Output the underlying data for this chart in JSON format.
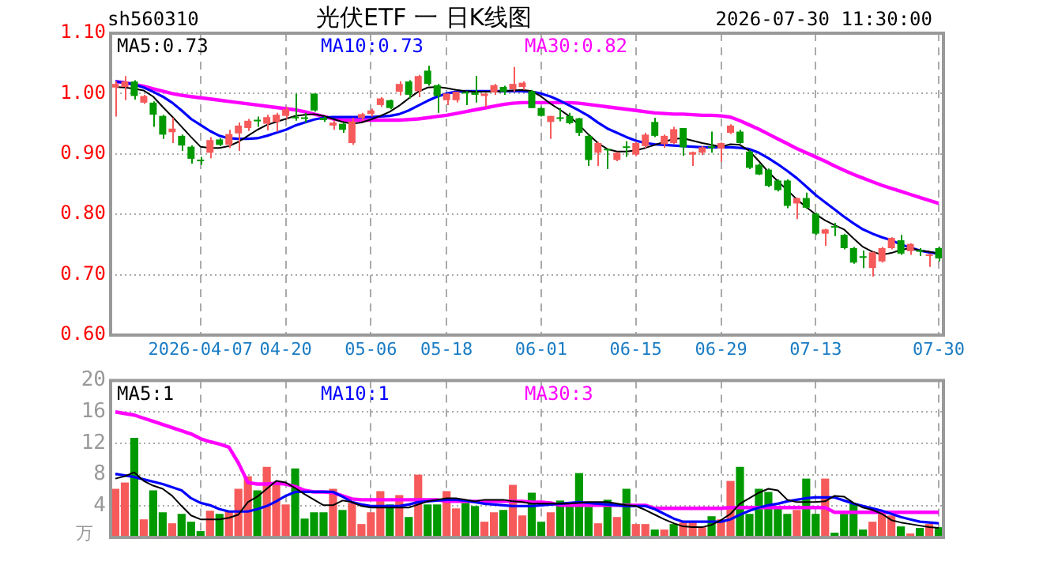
{
  "chart_data": [
    {
      "type": "candlestick",
      "title": "光伏ETF 一 日K线图",
      "annotations": [
        "sh560310",
        "2026-07-30 11:30:00"
      ],
      "categories": [
        null,
        null,
        null,
        null,
        null,
        null,
        null,
        null,
        null,
        "2026-04-07",
        null,
        null,
        null,
        null,
        null,
        null,
        null,
        null,
        "04-20",
        null,
        null,
        null,
        null,
        null,
        null,
        null,
        null,
        "05-06",
        null,
        null,
        null,
        null,
        null,
        null,
        null,
        "05-18",
        null,
        null,
        null,
        null,
        null,
        null,
        null,
        null,
        null,
        "06-01",
        null,
        null,
        null,
        null,
        null,
        null,
        null,
        null,
        null,
        "06-15",
        null,
        null,
        null,
        null,
        null,
        null,
        null,
        null,
        "06-29",
        null,
        null,
        null,
        null,
        null,
        null,
        null,
        null,
        null,
        "07-13",
        null,
        null,
        null,
        null,
        null,
        null,
        null,
        null,
        null,
        null,
        null,
        null,
        "07-30"
      ],
      "ohlc": [
        [
          1.01,
          1.02,
          0.962,
          1.016
        ],
        [
          1.011,
          1.029,
          0.989,
          1.02
        ],
        [
          1.02,
          1.022,
          0.99,
          0.996
        ],
        [
          0.985,
          0.998,
          0.983,
          0.996
        ],
        [
          0.985,
          0.987,
          0.945,
          0.965
        ],
        [
          0.963,
          0.965,
          0.925,
          0.932
        ],
        [
          0.936,
          0.96,
          0.918,
          0.942
        ],
        [
          0.93,
          0.932,
          0.905,
          0.914
        ],
        [
          0.912,
          0.914,
          0.884,
          0.892
        ],
        [
          0.889,
          0.895,
          0.882,
          0.888
        ],
        [
          0.902,
          0.928,
          0.893,
          0.923
        ],
        [
          0.924,
          0.926,
          0.913,
          0.915
        ],
        [
          0.915,
          0.94,
          0.91,
          0.933
        ],
        [
          0.934,
          0.952,
          0.905,
          0.947
        ],
        [
          0.943,
          0.958,
          0.938,
          0.955
        ],
        [
          0.955,
          0.962,
          0.945,
          0.954
        ],
        [
          0.95,
          0.965,
          0.939,
          0.961
        ],
        [
          0.953,
          0.968,
          0.937,
          0.965
        ],
        [
          0.963,
          0.978,
          0.958,
          0.974
        ],
        [
          0.96,
          1.0,
          0.955,
          0.959
        ],
        [
          0.96,
          0.968,
          0.952,
          0.958
        ],
        [
          1.0,
          1.0,
          0.97,
          0.972
        ],
        [
          0.96,
          0.962,
          0.953,
          0.956
        ],
        [
          0.947,
          0.955,
          0.94,
          0.952
        ],
        [
          0.95,
          0.952,
          0.935,
          0.94
        ],
        [
          0.918,
          0.96,
          0.915,
          0.954
        ],
        [
          0.96,
          0.968,
          0.955,
          0.966
        ],
        [
          0.966,
          0.975,
          0.962,
          0.972
        ],
        [
          0.981,
          0.994,
          0.978,
          0.992
        ],
        [
          0.989,
          0.99,
          0.974,
          0.976
        ],
        [
          1.003,
          1.02,
          0.997,
          1.016
        ],
        [
          1.02,
          1.022,
          0.992,
          0.998
        ],
        [
          1.004,
          1.031,
          0.994,
          1.029
        ],
        [
          1.038,
          1.046,
          1.013,
          1.016
        ],
        [
          1.014,
          1.016,
          0.968,
          0.996
        ],
        [
          0.989,
          1.0,
          0.981,
          1.0
        ],
        [
          0.989,
          1.003,
          0.985,
          1.003
        ],
        [
          1.002,
          1.004,
          0.981,
          1.0
        ],
        [
          1.002,
          1.029,
          0.985,
          0.998
        ],
        [
          0.996,
          1.0,
          0.978,
          1.0
        ],
        [
          1.002,
          1.016,
          0.998,
          1.014
        ],
        [
          1.011,
          1.013,
          0.998,
          1.003
        ],
        [
          1.007,
          1.044,
          1.003,
          1.016
        ],
        [
          1.011,
          1.02,
          1.006,
          1.018
        ],
        [
          1.004,
          1.006,
          0.976,
          0.976
        ],
        [
          0.976,
          0.978,
          0.962,
          0.963
        ],
        [
          0.953,
          0.963,
          0.925,
          0.963
        ],
        [
          0.96,
          0.976,
          0.954,
          0.958
        ],
        [
          0.963,
          0.968,
          0.949,
          0.951
        ],
        [
          0.959,
          0.96,
          0.93,
          0.935
        ],
        [
          0.93,
          0.932,
          0.88,
          0.89
        ],
        [
          0.902,
          0.92,
          0.88,
          0.918
        ],
        [
          0.907,
          0.909,
          0.875,
          0.906
        ],
        [
          0.89,
          0.903,
          0.888,
          0.902
        ],
        [
          0.912,
          0.921,
          0.895,
          0.91
        ],
        [
          0.899,
          0.92,
          0.896,
          0.918
        ],
        [
          0.913,
          0.935,
          0.91,
          0.932
        ],
        [
          0.953,
          0.96,
          0.928,
          0.93
        ],
        [
          0.916,
          0.932,
          0.91,
          0.93
        ],
        [
          0.918,
          0.945,
          0.916,
          0.941
        ],
        [
          0.943,
          0.943,
          0.897,
          0.911
        ],
        [
          0.899,
          0.904,
          0.88,
          0.903
        ],
        [
          0.902,
          0.913,
          0.898,
          0.911
        ],
        [
          0.912,
          0.937,
          0.902,
          0.91
        ],
        [
          0.909,
          0.919,
          0.887,
          0.918
        ],
        [
          0.935,
          0.949,
          0.933,
          0.947
        ],
        [
          0.937,
          0.94,
          0.917,
          0.918
        ],
        [
          0.904,
          0.906,
          0.875,
          0.877
        ],
        [
          0.882,
          0.884,
          0.865,
          0.866
        ],
        [
          0.874,
          0.876,
          0.845,
          0.847
        ],
        [
          0.856,
          0.858,
          0.838,
          0.84
        ],
        [
          0.856,
          0.858,
          0.81,
          0.814
        ],
        [
          0.818,
          0.827,
          0.792,
          0.827
        ],
        [
          0.827,
          0.836,
          0.809,
          0.811
        ],
        [
          0.801,
          0.803,
          0.766,
          0.768
        ],
        [
          0.768,
          0.776,
          0.748,
          0.775
        ],
        [
          0.78,
          0.786,
          0.764,
          0.778
        ],
        [
          0.766,
          0.768,
          0.742,
          0.744
        ],
        [
          0.744,
          0.746,
          0.718,
          0.72
        ],
        [
          0.73,
          0.74,
          0.711,
          0.728
        ],
        [
          0.711,
          0.738,
          0.697,
          0.737
        ],
        [
          0.722,
          0.746,
          0.72,
          0.744
        ],
        [
          0.744,
          0.762,
          0.742,
          0.761
        ],
        [
          0.757,
          0.766,
          0.733,
          0.735
        ],
        [
          0.739,
          0.752,
          0.733,
          0.751
        ],
        [
          0.74,
          0.744,
          0.731,
          0.738
        ],
        [
          0.731,
          0.735,
          0.713,
          0.733
        ],
        [
          0.744,
          0.746,
          0.722,
          0.727
        ]
      ],
      "colors": [
        "#f65a5a",
        "#f65a5a",
        "#009900",
        "#f65a5a",
        "#009900",
        "#009900",
        "#f65a5a",
        "#009900",
        "#009900",
        "#009900",
        "#f65a5a",
        "#009900",
        "#f65a5a",
        "#f65a5a",
        "#f65a5a",
        "#009900",
        "#f65a5a",
        "#f65a5a",
        "#f65a5a",
        "#009900",
        "#009900",
        "#009900",
        "#009900",
        "#f65a5a",
        "#009900",
        "#f65a5a",
        "#f65a5a",
        "#f65a5a",
        "#f65a5a",
        "#009900",
        "#f65a5a",
        "#009900",
        "#f65a5a",
        "#009900",
        "#009900",
        "#f65a5a",
        "#f65a5a",
        "#009900",
        "#009900",
        "#f65a5a",
        "#f65a5a",
        "#009900",
        "#f65a5a",
        "#f65a5a",
        "#009900",
        "#009900",
        "#f65a5a",
        "#009900",
        "#009900",
        "#009900",
        "#009900",
        "#f65a5a",
        "#009900",
        "#f65a5a",
        "#009900",
        "#f65a5a",
        "#f65a5a",
        "#009900",
        "#f65a5a",
        "#f65a5a",
        "#009900",
        "#f65a5a",
        "#f65a5a",
        "#009900",
        "#f65a5a",
        "#f65a5a",
        "#009900",
        "#009900",
        "#009900",
        "#009900",
        "#009900",
        "#009900",
        "#f65a5a",
        "#009900",
        "#009900",
        "#f65a5a",
        "#009900",
        "#009900",
        "#009900",
        "#009900",
        "#f65a5a",
        "#f65a5a",
        "#f65a5a",
        "#009900",
        "#f65a5a",
        "#009900",
        "#f65a5a",
        "#009900"
      ],
      "series": [
        {
          "type": "line",
          "name": "MA5:0.73",
          "color": "#000000",
          "values": [
            1.011,
            1.01,
            1.008,
            1.005,
            0.995,
            0.978,
            0.962,
            0.945,
            0.928,
            0.912,
            0.91,
            0.91,
            0.913,
            0.92,
            0.93,
            0.94,
            0.948,
            0.953,
            0.958,
            0.963,
            0.965,
            0.966,
            0.963,
            0.958,
            0.953,
            0.95,
            0.952,
            0.957,
            0.963,
            0.97,
            0.98,
            0.992,
            1.003,
            1.01,
            1.011,
            1.009,
            1.006,
            1.004,
            1.003,
            1.003,
            1.003,
            1.004,
            1.005,
            1.006,
            1.004,
            0.995,
            0.983,
            0.973,
            0.962,
            0.948,
            0.932,
            0.918,
            0.908,
            0.904,
            0.904,
            0.906,
            0.91,
            0.915,
            0.92,
            0.925,
            0.926,
            0.922,
            0.918,
            0.915,
            0.912,
            0.916,
            0.915,
            0.905,
            0.888,
            0.87,
            0.855,
            0.84,
            0.825,
            0.812,
            0.8,
            0.79,
            0.782,
            0.775,
            0.76,
            0.746,
            0.738,
            0.733,
            0.736,
            0.741,
            0.744,
            0.74,
            0.738,
            0.735
          ]
        },
        {
          "type": "line",
          "name": "MA10:0.73",
          "color": "#0000ff",
          "values": [
            1.02,
            1.018,
            1.015,
            1.01,
            1.003,
            0.995,
            0.985,
            0.972,
            0.958,
            0.948,
            0.938,
            0.93,
            0.926,
            0.925,
            0.925,
            0.926,
            0.93,
            0.935,
            0.94,
            0.947,
            0.952,
            0.957,
            0.96,
            0.961,
            0.961,
            0.961,
            0.961,
            0.961,
            0.962,
            0.963,
            0.966,
            0.972,
            0.98,
            0.988,
            0.995,
            1.0,
            1.003,
            1.004,
            1.004,
            1.004,
            1.004,
            1.004,
            1.004,
            1.004,
            1.003,
            1.0,
            0.995,
            0.988,
            0.98,
            0.972,
            0.963,
            0.952,
            0.942,
            0.935,
            0.928,
            0.922,
            0.918,
            0.916,
            0.915,
            0.914,
            0.913,
            0.912,
            0.911,
            0.911,
            0.911,
            0.911,
            0.91,
            0.908,
            0.902,
            0.893,
            0.883,
            0.872,
            0.86,
            0.846,
            0.832,
            0.82,
            0.808,
            0.796,
            0.785,
            0.775,
            0.768,
            0.762,
            0.757,
            0.75,
            0.745,
            0.74,
            0.737,
            0.735
          ]
        },
        {
          "type": "line",
          "name": "MA30:0.82",
          "color": "#ff00ff",
          "values": [
            1.02,
            1.018,
            1.015,
            1.012,
            1.008,
            1.004,
            1.0,
            0.997,
            0.995,
            0.993,
            0.991,
            0.989,
            0.987,
            0.985,
            0.983,
            0.981,
            0.979,
            0.977,
            0.975,
            0.973,
            0.97,
            0.966,
            0.962,
            0.958,
            0.956,
            0.956,
            0.956,
            0.956,
            0.956,
            0.956,
            0.956,
            0.957,
            0.958,
            0.96,
            0.962,
            0.964,
            0.967,
            0.97,
            0.973,
            0.976,
            0.979,
            0.982,
            0.984,
            0.985,
            0.985,
            0.985,
            0.985,
            0.985,
            0.985,
            0.984,
            0.982,
            0.98,
            0.978,
            0.976,
            0.974,
            0.972,
            0.97,
            0.968,
            0.967,
            0.966,
            0.966,
            0.965,
            0.964,
            0.964,
            0.963,
            0.961,
            0.955,
            0.948,
            0.941,
            0.933,
            0.925,
            0.917,
            0.909,
            0.902,
            0.895,
            0.888,
            0.88,
            0.873,
            0.866,
            0.86,
            0.854,
            0.848,
            0.843,
            0.838,
            0.833,
            0.828,
            0.823,
            0.818
          ]
        }
      ],
      "ylim": [
        0.6,
        1.1
      ],
      "yticks": [
        {
          "value": 0.6,
          "label": "0.60"
        },
        {
          "value": 0.7,
          "label": "0.70"
        },
        {
          "value": 0.8,
          "label": "0.80"
        },
        {
          "value": 0.9,
          "label": "0.90"
        },
        {
          "value": 1.0,
          "label": "1.00"
        },
        {
          "value": 1.1,
          "label": "1.10"
        }
      ],
      "grid": true,
      "legend": "top"
    },
    {
      "type": "bar",
      "ylabel": "万",
      "tick_labels": "y",
      "categories": [
        null,
        null,
        null,
        null,
        null,
        null,
        null,
        null,
        null,
        null,
        null,
        null,
        null,
        null,
        null,
        null,
        null,
        null,
        null,
        null,
        null,
        null,
        null,
        null,
        null,
        null,
        null,
        null,
        null,
        null,
        null,
        null,
        null,
        null,
        null,
        null,
        null,
        null,
        null,
        null,
        null,
        null,
        null,
        null,
        null,
        null,
        null,
        null,
        null,
        null,
        null,
        null,
        null,
        null,
        null,
        null,
        null,
        null,
        null,
        null,
        null,
        null,
        null,
        null,
        null,
        null,
        null,
        null,
        null,
        null,
        null,
        null,
        null,
        null,
        null,
        null,
        null,
        null,
        null,
        null,
        null,
        null,
        null,
        null,
        null,
        null,
        null,
        null
      ],
      "values": [
        6.2,
        7.0,
        12.7,
        2.3,
        6.0,
        3.2,
        1.8,
        3.0,
        2.0,
        0.8,
        3.4,
        3.0,
        3.4,
        6.2,
        7.8,
        6.0,
        9.0,
        6.8,
        4.2,
        8.8,
        2.4,
        3.2,
        3.2,
        6.2,
        3.5,
        4.4,
        1.7,
        3.2,
        5.9,
        4.2,
        5.4,
        2.6,
        8.0,
        4.2,
        4.2,
        5.9,
        3.7,
        4.4,
        4.0,
        2.0,
        3.2,
        3.5,
        6.7,
        2.8,
        5.7,
        2.0,
        3.2,
        4.7,
        4.1,
        8.2,
        3.9,
        1.8,
        4.8,
        2.6,
        6.2,
        1.7,
        1.7,
        1.0,
        1.0,
        1.7,
        1.9,
        1.9,
        1.3,
        2.7,
        2.3,
        7.2,
        9.0,
        3.0,
        6.2,
        5.8,
        3.7,
        3.0,
        3.5,
        7.5,
        3.0,
        7.5,
        0.6,
        3.0,
        4.3,
        1.0,
        2.0,
        3.0,
        2.8,
        1.4,
        0.5,
        1.2,
        1.7,
        1.3
      ],
      "colors": [
        "#f65a5a",
        "#f65a5a",
        "#009900",
        "#f65a5a",
        "#009900",
        "#009900",
        "#f65a5a",
        "#009900",
        "#009900",
        "#009900",
        "#f65a5a",
        "#009900",
        "#f65a5a",
        "#f65a5a",
        "#f65a5a",
        "#009900",
        "#f65a5a",
        "#f65a5a",
        "#f65a5a",
        "#009900",
        "#009900",
        "#009900",
        "#009900",
        "#f65a5a",
        "#009900",
        "#f65a5a",
        "#f65a5a",
        "#f65a5a",
        "#f65a5a",
        "#009900",
        "#f65a5a",
        "#009900",
        "#f65a5a",
        "#009900",
        "#009900",
        "#f65a5a",
        "#f65a5a",
        "#009900",
        "#009900",
        "#f65a5a",
        "#f65a5a",
        "#009900",
        "#f65a5a",
        "#f65a5a",
        "#009900",
        "#009900",
        "#f65a5a",
        "#009900",
        "#009900",
        "#009900",
        "#009900",
        "#f65a5a",
        "#009900",
        "#f65a5a",
        "#009900",
        "#f65a5a",
        "#f65a5a",
        "#009900",
        "#f65a5a",
        "#009900",
        "#f65a5a",
        "#f65a5a",
        "#f65a5a",
        "#009900",
        "#f65a5a",
        "#f65a5a",
        "#009900",
        "#009900",
        "#009900",
        "#009900",
        "#009900",
        "#009900",
        "#f65a5a",
        "#009900",
        "#009900",
        "#f65a5a",
        "#009900",
        "#009900",
        "#009900",
        "#009900",
        "#f65a5a",
        "#f65a5a",
        "#f65a5a",
        "#009900",
        "#f65a5a",
        "#009900",
        "#f65a5a",
        "#009900"
      ],
      "series": [
        {
          "type": "line",
          "name": "MA5:1",
          "color": "#000000",
          "values": [
            7.5,
            7.8,
            8.3,
            7.2,
            6.6,
            6.2,
            5.3,
            4.0,
            2.8,
            2.3,
            2.3,
            2.3,
            2.5,
            2.9,
            4.5,
            5.2,
            6.2,
            7.2,
            7.0,
            6.3,
            5.5,
            4.8,
            4.1,
            4.1,
            4.7,
            4.5,
            4.0,
            3.8,
            3.8,
            3.8,
            3.8,
            3.8,
            4.2,
            4.6,
            4.8,
            5.0,
            5.0,
            4.8,
            4.6,
            4.8,
            4.8,
            4.8,
            4.6,
            4.5,
            4.3,
            4.3,
            4.3,
            4.3,
            4.3,
            4.4,
            4.5,
            4.5,
            4.5,
            4.3,
            4.1,
            4.0,
            3.5,
            2.9,
            2.3,
            1.8,
            1.4,
            1.3,
            1.3,
            1.6,
            2.2,
            3.0,
            4.3,
            5.0,
            5.7,
            6.2,
            6.0,
            4.8,
            4.5,
            4.5,
            4.5,
            4.6,
            5.3,
            5.2,
            4.4,
            3.8,
            3.5,
            3.0,
            2.2,
            1.9,
            1.7,
            1.5,
            1.3,
            1.2
          ]
        },
        {
          "type": "line",
          "name": "MA10:1",
          "color": "#0000ff",
          "values": [
            8.1,
            7.9,
            7.7,
            7.4,
            7.1,
            6.8,
            6.4,
            6.0,
            5.0,
            4.4,
            4.1,
            3.6,
            3.3,
            3.3,
            3.3,
            3.6,
            4.0,
            4.6,
            5.3,
            5.8,
            5.8,
            5.8,
            5.8,
            5.8,
            5.2,
            4.5,
            4.2,
            4.0,
            4.0,
            4.0,
            4.0,
            4.2,
            4.5,
            4.6,
            4.7,
            4.8,
            4.8,
            4.7,
            4.5,
            4.3,
            4.2,
            4.1,
            4.0,
            4.0,
            4.0,
            4.1,
            4.2,
            4.3,
            4.4,
            4.5,
            4.4,
            4.3,
            4.2,
            4.1,
            4.0,
            4.0,
            4.0,
            3.6,
            3.0,
            2.4,
            2.0,
            2.0,
            2.0,
            2.0,
            2.0,
            2.3,
            2.9,
            3.4,
            3.8,
            4.1,
            4.3,
            4.6,
            4.8,
            5.0,
            5.1,
            5.1,
            5.1,
            4.7,
            4.3,
            4.0,
            3.7,
            3.4,
            3.0,
            2.6,
            2.3,
            2.0,
            1.9,
            1.8
          ]
        },
        {
          "type": "line",
          "name": "MA30:3",
          "color": "#ff00ff",
          "values": [
            16.0,
            15.8,
            15.6,
            15.2,
            14.8,
            14.4,
            14.0,
            13.6,
            13.2,
            12.6,
            12.2,
            11.9,
            11.5,
            9.5,
            7.0,
            6.8,
            6.8,
            6.9,
            6.8,
            6.5,
            6.0,
            5.8,
            5.8,
            5.7,
            5.3,
            4.9,
            4.8,
            4.8,
            4.8,
            4.8,
            4.8,
            4.8,
            4.8,
            4.8,
            4.8,
            4.6,
            4.6,
            4.6,
            4.6,
            4.6,
            4.6,
            4.6,
            4.6,
            4.6,
            4.5,
            4.5,
            4.4,
            4.1,
            4.1,
            4.1,
            4.1,
            4.1,
            4.1,
            4.1,
            4.1,
            4.1,
            4.1,
            3.7,
            3.7,
            3.7,
            3.7,
            3.7,
            3.7,
            3.7,
            3.7,
            3.8,
            3.8,
            3.8,
            3.8,
            3.8,
            3.8,
            3.8,
            3.8,
            3.8,
            3.8,
            3.8,
            3.2,
            3.2,
            3.2,
            3.2,
            3.2,
            3.2,
            3.2,
            3.2,
            3.2,
            3.2,
            3.2,
            3.2
          ]
        }
      ],
      "ylim": [
        0,
        20
      ],
      "yticks": [
        {
          "value": 0,
          "label": null
        },
        4,
        8,
        12,
        16,
        20
      ],
      "grid": true,
      "legend": "top"
    }
  ]
}
